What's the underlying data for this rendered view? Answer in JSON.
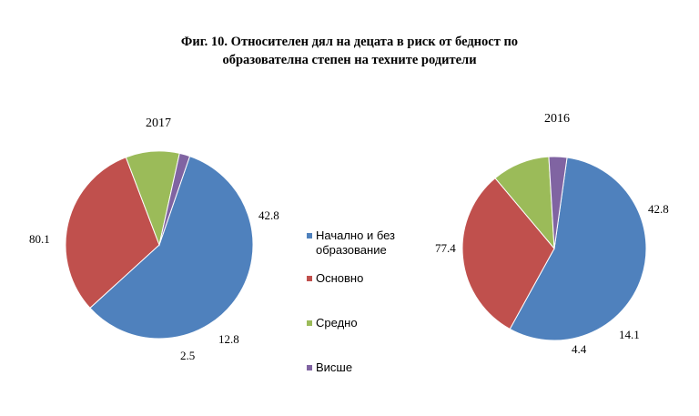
{
  "chart_data": {
    "type": "pie",
    "title_lines": [
      "Фиг. 10. Относителен дял на децата в риск от бедност по",
      "образователна степен на техните родители"
    ],
    "legend": {
      "placement": "center",
      "entries": [
        {
          "label_lines": [
            "Начално и без",
            "образование"
          ],
          "color": "#4F81BD"
        },
        {
          "label_lines": [
            "Основно"
          ],
          "color": "#C0504D"
        },
        {
          "label_lines": [
            "Средно"
          ],
          "color": "#9BBB59"
        },
        {
          "label_lines": [
            "Висше"
          ],
          "color": "#8064A2"
        }
      ]
    },
    "pies": [
      {
        "title": "2017",
        "categories": [
          "Начално и без образование",
          "Основно",
          "Средно",
          "Висше"
        ],
        "values": [
          80.1,
          42.8,
          12.8,
          2.5
        ],
        "labels": [
          "80.1",
          "42.8",
          "12.8",
          "2.5"
        ]
      },
      {
        "title": "2016",
        "categories": [
          "Начално и без образование",
          "Основно",
          "Средно",
          "Висше"
        ],
        "values": [
          77.4,
          42.8,
          14.1,
          4.4
        ],
        "labels": [
          "77.4",
          "42.8",
          "14.1",
          "4.4"
        ]
      }
    ]
  }
}
